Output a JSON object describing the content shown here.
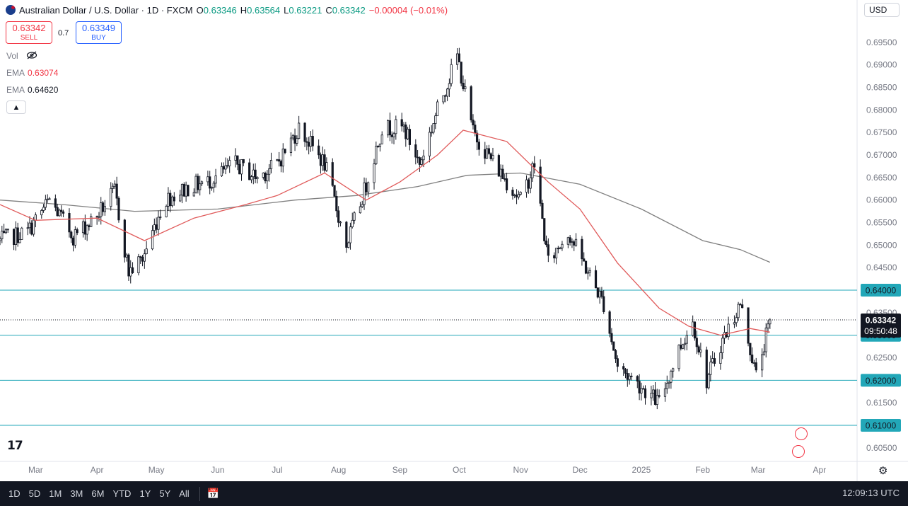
{
  "header": {
    "symbol": "Australian Dollar / U.S. Dollar · 1D · FXCM",
    "open_label": "O",
    "open": "0.63346",
    "high_label": "H",
    "high": "0.63564",
    "low_label": "L",
    "low": "0.63221",
    "close_label": "C",
    "close": "0.63342",
    "change": "−0.00004 (−0.01%)"
  },
  "currency_selector": "USD",
  "trade": {
    "sell_price": "0.63342",
    "sell_label": "SELL",
    "spread": "0.7",
    "buy_price": "0.63349",
    "buy_label": "BUY"
  },
  "indicators": {
    "vol_label": "Vol",
    "ema1_label": "EMA",
    "ema1_value": "0.63074",
    "ema2_label": "EMA",
    "ema2_value": "0.64620"
  },
  "price_tag": {
    "price": "0.63342",
    "countdown": "09:50:48"
  },
  "bottom_bar": {
    "ranges": [
      "1D",
      "5D",
      "1M",
      "3M",
      "6M",
      "YTD",
      "1Y",
      "5Y",
      "All"
    ],
    "time": "12:09:13 UTC"
  },
  "icons": {
    "logo": "tradingview-logo-icon",
    "settings": "gear-icon",
    "calendar": "calendar-range-icon",
    "visibility": "eye-off-icon"
  },
  "colors": {
    "up": "#089981",
    "down": "#f23645",
    "ema_fast": "#e05a5a",
    "ema_slow": "#808080",
    "support_line": "#22a7b8",
    "tag_bg": "#22a7b8"
  },
  "chart_data": {
    "type": "candlestick",
    "y_axis_ticks": [
      "0.69500",
      "0.69000",
      "0.68500",
      "0.68000",
      "0.67500",
      "0.67000",
      "0.66500",
      "0.66000",
      "0.65500",
      "0.65000",
      "0.64500",
      "0.64000",
      "0.63500",
      "0.63000",
      "0.62500",
      "0.62000",
      "0.61500",
      "0.61000",
      "0.60500"
    ],
    "ylim": [
      0.602,
      0.7
    ],
    "x_axis_labels": [
      "Mar",
      "Apr",
      "May",
      "Jun",
      "Jul",
      "Aug",
      "Sep",
      "Oct",
      "Nov",
      "Dec",
      "2025",
      "Feb",
      "Mar",
      "Apr"
    ],
    "x_range": [
      "2024-02-12",
      "2025-04-20"
    ],
    "x_label_dates": [
      "2024-03-01",
      "2024-04-01",
      "2024-05-01",
      "2024-06-01",
      "2024-07-01",
      "2024-08-01",
      "2024-09-01",
      "2024-10-01",
      "2024-11-01",
      "2024-12-01",
      "2025-01-01",
      "2025-02-01",
      "2025-03-01",
      "2025-04-01"
    ],
    "horizontal_lines": [
      {
        "price": 0.64,
        "label": "0.64000"
      },
      {
        "price": 0.63,
        "label": "0.63000"
      },
      {
        "price": 0.62,
        "label": "0.62000"
      },
      {
        "price": 0.61,
        "label": "0.61000"
      }
    ],
    "last_price": 0.63342,
    "close_path": [
      [
        "2024-02-12",
        0.651
      ],
      [
        "2024-02-26",
        0.653
      ],
      [
        "2024-03-08",
        0.66
      ],
      [
        "2024-03-20",
        0.652
      ],
      [
        "2024-03-31",
        0.656
      ],
      [
        "2024-04-10",
        0.662
      ],
      [
        "2024-04-17",
        0.644
      ],
      [
        "2024-04-24",
        0.647
      ],
      [
        "2024-05-05",
        0.66
      ],
      [
        "2024-05-18",
        0.663
      ],
      [
        "2024-05-27",
        0.664
      ],
      [
        "2024-06-10",
        0.668
      ],
      [
        "2024-06-21",
        0.665
      ],
      [
        "2024-07-01",
        0.668
      ],
      [
        "2024-07-12",
        0.676
      ],
      [
        "2024-07-25",
        0.668
      ],
      [
        "2024-08-05",
        0.65
      ],
      [
        "2024-08-14",
        0.662
      ],
      [
        "2024-08-23",
        0.676
      ],
      [
        "2024-09-03",
        0.676
      ],
      [
        "2024-09-11",
        0.668
      ],
      [
        "2024-09-20",
        0.68
      ],
      [
        "2024-09-30",
        0.692
      ],
      [
        "2024-10-08",
        0.675
      ],
      [
        "2024-10-22",
        0.666
      ],
      [
        "2024-11-01",
        0.66
      ],
      [
        "2024-11-08",
        0.668
      ],
      [
        "2024-11-15",
        0.646
      ],
      [
        "2024-11-25",
        0.653
      ],
      [
        "2024-12-04",
        0.645
      ],
      [
        "2024-12-13",
        0.637
      ],
      [
        "2024-12-20",
        0.623
      ],
      [
        "2024-12-31",
        0.619
      ],
      [
        "2025-01-10",
        0.615
      ],
      [
        "2025-01-20",
        0.627
      ],
      [
        "2025-01-27",
        0.633
      ],
      [
        "2025-02-03",
        0.62
      ],
      [
        "2025-02-10",
        0.628
      ],
      [
        "2025-02-20",
        0.637
      ],
      [
        "2025-02-28",
        0.621
      ],
      [
        "2025-03-04",
        0.628
      ],
      [
        "2025-03-07",
        0.6334
      ]
    ],
    "ema_fast_path": [
      [
        "2024-02-12",
        0.659
      ],
      [
        "2024-03-01",
        0.6555
      ],
      [
        "2024-04-01",
        0.656
      ],
      [
        "2024-04-25",
        0.651
      ],
      [
        "2024-05-20",
        0.656
      ],
      [
        "2024-06-15",
        0.659
      ],
      [
        "2024-07-01",
        0.661
      ],
      [
        "2024-07-25",
        0.666
      ],
      [
        "2024-08-15",
        0.66
      ],
      [
        "2024-09-01",
        0.664
      ],
      [
        "2024-09-20",
        0.67
      ],
      [
        "2024-10-03",
        0.6755
      ],
      [
        "2024-10-25",
        0.673
      ],
      [
        "2024-11-15",
        0.664
      ],
      [
        "2024-12-01",
        0.658
      ],
      [
        "2024-12-20",
        0.646
      ],
      [
        "2025-01-10",
        0.636
      ],
      [
        "2025-01-25",
        0.632
      ],
      [
        "2025-02-10",
        0.63
      ],
      [
        "2025-02-25",
        0.6315
      ],
      [
        "2025-03-07",
        0.6307
      ]
    ],
    "ema_slow_path": [
      [
        "2024-02-12",
        0.66
      ],
      [
        "2024-03-15",
        0.659
      ],
      [
        "2024-04-20",
        0.6575
      ],
      [
        "2024-06-01",
        0.658
      ],
      [
        "2024-07-10",
        0.66
      ],
      [
        "2024-08-10",
        0.661
      ],
      [
        "2024-09-10",
        0.663
      ],
      [
        "2024-10-05",
        0.6655
      ],
      [
        "2024-11-01",
        0.666
      ],
      [
        "2024-12-01",
        0.6635
      ],
      [
        "2025-01-01",
        0.658
      ],
      [
        "2025-02-01",
        0.651
      ],
      [
        "2025-02-20",
        0.649
      ],
      [
        "2025-03-07",
        0.6462
      ]
    ]
  }
}
